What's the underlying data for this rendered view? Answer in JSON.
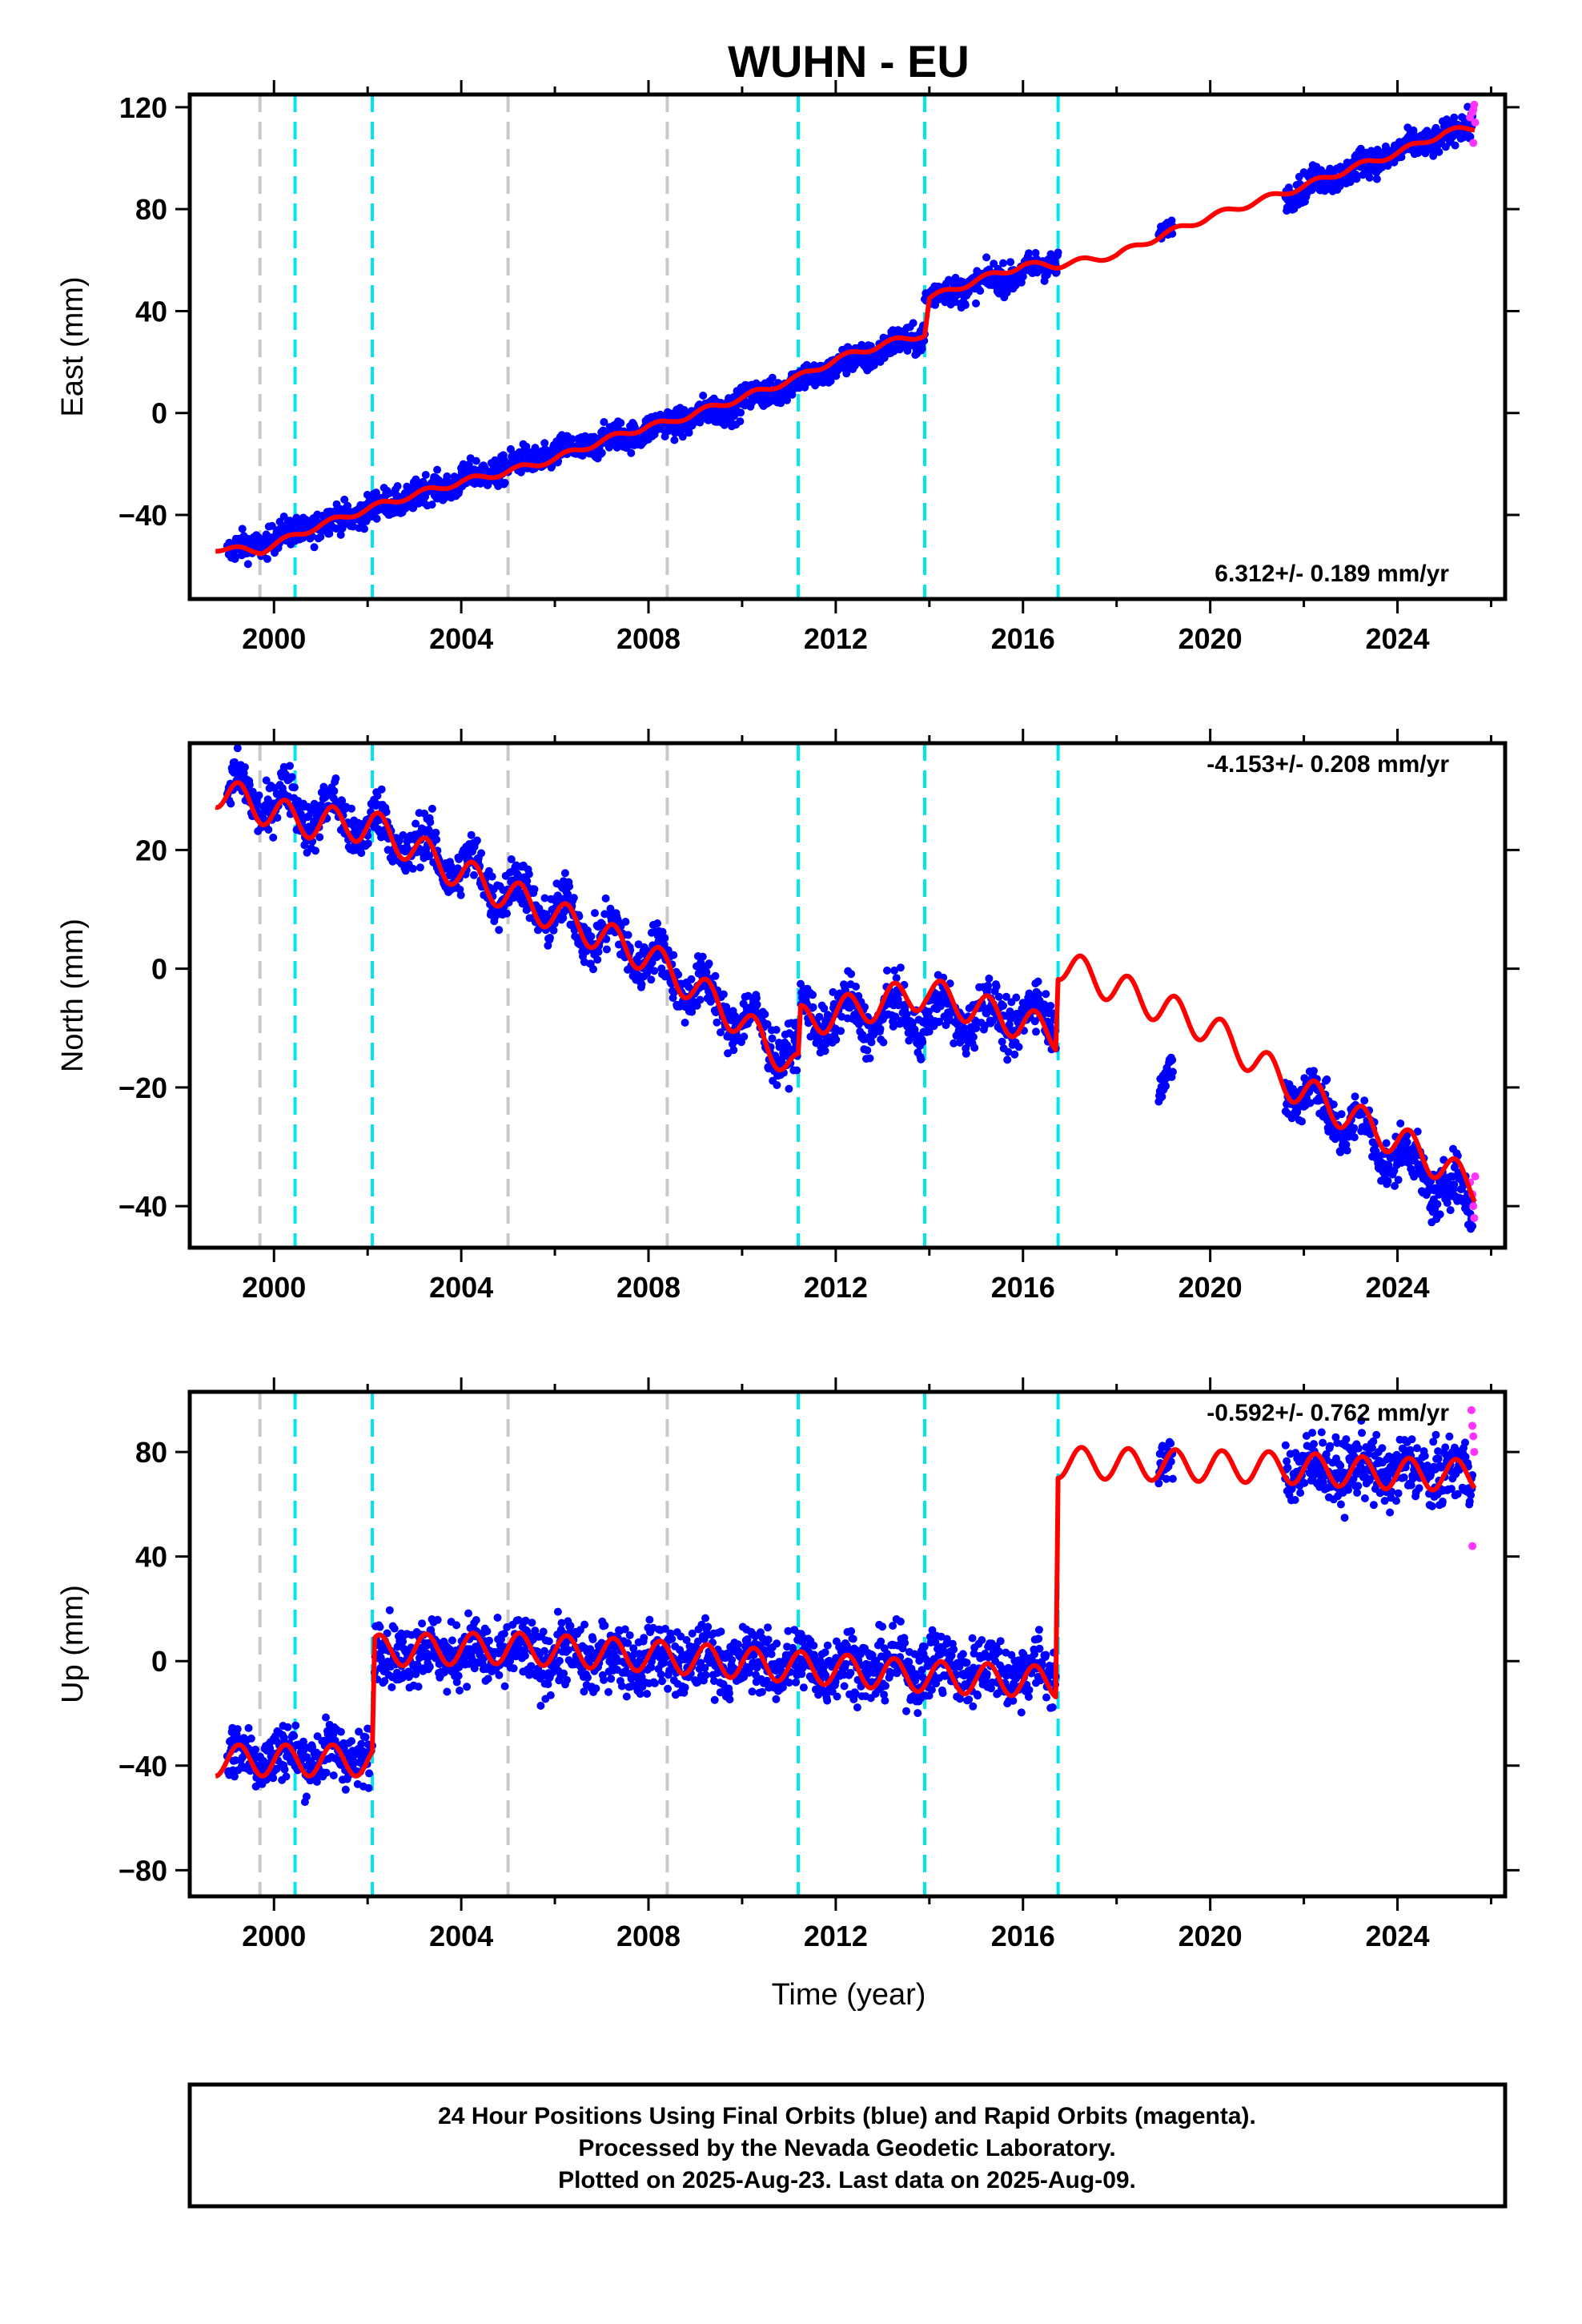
{
  "chart_data": {
    "type": "scatter",
    "title": "WUHN - EU",
    "xlabel": "Time (year)",
    "xlim": [
      1998.2,
      2026.3
    ],
    "xticks": [
      2000,
      2004,
      2008,
      2012,
      2016,
      2020,
      2024
    ],
    "xminor_ticks": [
      1998,
      2002,
      2006,
      2010,
      2014,
      2018,
      2022,
      2026
    ],
    "vlines": [
      {
        "x": 1999.7,
        "kind": "equipment",
        "color": "#c8c8c8"
      },
      {
        "x": 2005.0,
        "kind": "equipment",
        "color": "#c8c8c8"
      },
      {
        "x": 2008.4,
        "kind": "equipment",
        "color": "#c8c8c8"
      },
      {
        "x": 2000.45,
        "kind": "antenna",
        "color": "#00e5ee"
      },
      {
        "x": 2002.1,
        "kind": "antenna",
        "color": "#00e5ee"
      },
      {
        "x": 2011.2,
        "kind": "antenna",
        "color": "#00e5ee"
      },
      {
        "x": 2013.9,
        "kind": "antenna",
        "color": "#00e5ee"
      },
      {
        "x": 2016.75,
        "kind": "antenna",
        "color": "#00e5ee"
      }
    ],
    "colors": {
      "final_orbits": "#0000ff",
      "rapid_orbits": "#ff33ff",
      "model": "#ff0000"
    },
    "panels": [
      {
        "ylabel": "East (mm)",
        "ylim": [
          -73,
          125
        ],
        "yticks": [
          120,
          80,
          40,
          0,
          -40
        ],
        "yticklabels": [
          "120",
          "80",
          "40",
          "0",
          "−40"
        ],
        "rate_text": "6.312+/- 0.189 mm/yr",
        "rate_position": "bottom-right",
        "model": {
          "x": [
            1998.75,
            1999.5,
            1999.75,
            2000.45,
            2001.0,
            2002.1,
            2003.0,
            2004.0,
            2005.0,
            2006.0,
            2007.0,
            2008.0,
            2008.4,
            2009.0,
            2010.0,
            2011.2,
            2012.0,
            2013.0,
            2013.9,
            2014.0,
            2015.0,
            2016.0,
            2016.75,
            2018.0,
            2019.0,
            2020.0,
            2021.0,
            2022.0,
            2023.0,
            2024.0,
            2025.0,
            2025.65
          ],
          "y": [
            -53,
            -54,
            -54,
            -48,
            -44,
            -37,
            -32,
            -27,
            -23,
            -18,
            -11,
            -5,
            -4,
            0,
            6,
            14,
            21,
            27,
            31,
            45,
            52,
            58,
            58,
            62,
            70,
            77,
            83,
            89,
            96,
            102,
            110,
            112
          ]
        },
        "data": [
          {
            "x_start": 1999.0,
            "x_end": 2005.0,
            "y_start": -55,
            "y_end": -21,
            "spread": 4
          },
          {
            "x_start": 2005.0,
            "x_end": 2009.5,
            "y_start": -21,
            "y_end": 1,
            "spread": 4
          },
          {
            "x_start": 2009.5,
            "x_end": 2013.9,
            "y_start": 1,
            "y_end": 31,
            "spread": 4
          },
          {
            "x_start": 2013.9,
            "x_end": 2016.75,
            "y_start": 45,
            "y_end": 59,
            "spread": 4
          },
          {
            "x_start": 2018.9,
            "x_end": 2019.2,
            "y_start": 71,
            "y_end": 72,
            "spread": 2
          },
          {
            "x_start": 2021.6,
            "x_end": 2025.6,
            "y_start": 86,
            "y_end": 113,
            "spread": 4
          }
        ],
        "rapid": {
          "x": [
            2025.55,
            2025.6,
            2025.62,
            2025.64,
            2025.66,
            2025.62
          ],
          "y": [
            116,
            118,
            119,
            121,
            114,
            106
          ]
        }
      },
      {
        "ylabel": "North (mm)",
        "ylim": [
          -47,
          38
        ],
        "yticks": [
          20,
          0,
          -20,
          -40
        ],
        "yticklabels": [
          "20",
          "0",
          "−20",
          "−40"
        ],
        "rate_text": "-4.153+/- 0.208 mm/yr",
        "rate_position": "top-right",
        "model": {
          "x": [
            1998.75,
            2000.45,
            2002.1,
            2004.0,
            2006.0,
            2008.0,
            2009.5,
            2011.2,
            2011.25,
            2013.9,
            2016.7,
            2016.75,
            2020.0,
            2021.6,
            2023.0,
            2024.5,
            2025.65
          ],
          "y": [
            30,
            25,
            24,
            16,
            9,
            2,
            -6,
            -17,
            -9,
            -4,
            -11,
            1,
            -10,
            -19,
            -25,
            -31,
            -37
          ]
        },
        "data": [
          {
            "x_start": 1999.0,
            "x_end": 2002.1,
            "y_start": 30,
            "y_end": 24,
            "spread": 3
          },
          {
            "x_start": 2002.1,
            "x_end": 2008.0,
            "y_start": 24,
            "y_end": 2,
            "spread": 3
          },
          {
            "x_start": 2008.0,
            "x_end": 2011.2,
            "y_start": 2,
            "y_end": -15,
            "spread": 3
          },
          {
            "x_start": 2011.25,
            "x_end": 2016.7,
            "y_start": -8,
            "y_end": -8,
            "spread": 3
          },
          {
            "x_start": 2018.9,
            "x_end": 2019.2,
            "y_start": -18,
            "y_end": -20,
            "spread": 2
          },
          {
            "x_start": 2021.6,
            "x_end": 2025.6,
            "y_start": -19,
            "y_end": -40,
            "spread": 3
          }
        ],
        "rapid": {
          "x": [
            2025.55,
            2025.6,
            2025.62,
            2025.64,
            2025.66
          ],
          "y": [
            -36,
            -38,
            -40,
            -42,
            -35
          ]
        }
      },
      {
        "ylabel": "Up (mm)",
        "ylim": [
          -90,
          103
        ],
        "yticks": [
          80,
          40,
          0,
          -40,
          -80
        ],
        "yticklabels": [
          "80",
          "40",
          "0",
          "−40",
          "−80"
        ],
        "rate_text": "-0.592+/- 0.762 mm/yr",
        "rate_position": "top-right",
        "model": {
          "x": [
            1998.75,
            2000.0,
            2002.1,
            2002.15,
            2005.0,
            2008.0,
            2011.0,
            2014.0,
            2016.7,
            2016.75,
            2019.0,
            2021.6,
            2023.5,
            2025.65
          ],
          "y": [
            -38,
            -38,
            -38,
            4,
            5,
            2,
            -2,
            -6,
            -8,
            76,
            75,
            74,
            72,
            71
          ]
        },
        "data": [
          {
            "x_start": 1999.0,
            "x_end": 2002.1,
            "y_start": -36,
            "y_end": -36,
            "spread": 8
          },
          {
            "x_start": 2002.15,
            "x_end": 2016.7,
            "y_start": 4,
            "y_end": -4,
            "spread": 9
          },
          {
            "x_start": 2018.9,
            "x_end": 2019.2,
            "y_start": 75,
            "y_end": 75,
            "spread": 5
          },
          {
            "x_start": 2021.6,
            "x_end": 2025.6,
            "y_start": 74,
            "y_end": 72,
            "spread": 9
          }
        ],
        "rapid": {
          "x": [
            2025.58,
            2025.6,
            2025.62,
            2025.64,
            2025.6
          ],
          "y": [
            96,
            90,
            86,
            80,
            44
          ]
        }
      }
    ]
  },
  "footer": {
    "line1": "24 Hour Positions Using Final Orbits (blue) and Rapid Orbits (magenta).",
    "line2": "Processed by the Nevada Geodetic Laboratory.",
    "line3": "Plotted on 2025-Aug-23. Last data on 2025-Aug-09."
  }
}
